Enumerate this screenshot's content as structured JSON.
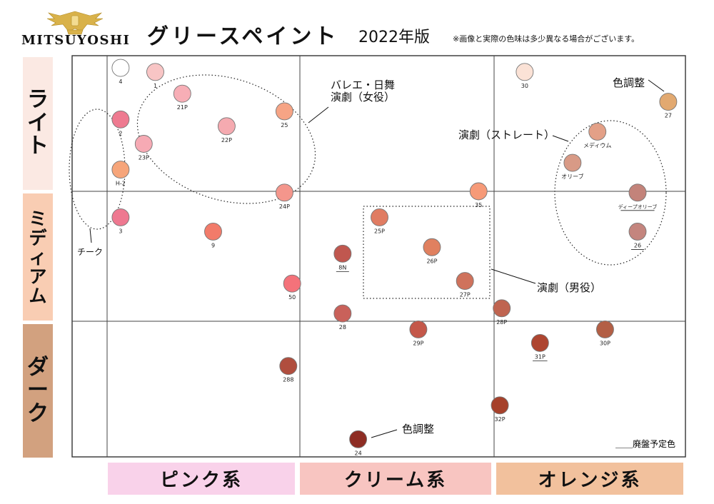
{
  "brand": {
    "name": "MITSUYOSHI"
  },
  "header": {
    "title": "グリースペイント",
    "edition": "2022年版",
    "note": "※画像と実際の色味は多少異なる場合がございます。"
  },
  "rows": [
    {
      "label": "ライト",
      "color": "#fbe9e3"
    },
    {
      "label": "ミディアム",
      "color": "#f9cdb3"
    },
    {
      "label": "ダーク",
      "color": "#d2a17f"
    }
  ],
  "columns": [
    {
      "label": "ピンク系",
      "color": "#f9d2ea"
    },
    {
      "label": "クリーム系",
      "color": "#f8c5c1"
    },
    {
      "label": "オレンジ系",
      "color": "#f2c19d"
    }
  ],
  "chart_data": {
    "type": "scatter",
    "legend": {
      "discontinued_label": "＿＿廃盤予定色"
    },
    "points": [
      {
        "label": "4",
        "x": 0.07,
        "y": 0.09,
        "color": "#ffffff",
        "discontinued": false
      },
      {
        "label": "2",
        "x": 0.07,
        "y": 0.47,
        "color": "#ee7a90",
        "discontinued": false
      },
      {
        "label": "H-2",
        "x": 0.07,
        "y": 0.84,
        "color": "#f6a57a",
        "discontinued": false
      },
      {
        "label": "3",
        "x": 0.07,
        "y": 1.2,
        "color": "#ee7890",
        "discontinued": false
      },
      {
        "label": "1",
        "x": 0.25,
        "y": 0.12,
        "color": "#f8c5c5",
        "discontinued": false
      },
      {
        "label": "21P",
        "x": 0.39,
        "y": 0.28,
        "color": "#f7aeb6",
        "discontinued": false
      },
      {
        "label": "22P",
        "x": 0.62,
        "y": 0.52,
        "color": "#f5aab0",
        "discontinued": false
      },
      {
        "label": "23P",
        "x": 0.19,
        "y": 0.65,
        "color": "#f6aab4",
        "discontinued": false
      },
      {
        "label": "25",
        "x": 0.92,
        "y": 0.41,
        "color": "#f6a485",
        "discontinued": false
      },
      {
        "label": "24P",
        "x": 0.92,
        "y": 1.01,
        "color": "#f4968c",
        "discontinued": false
      },
      {
        "label": "9",
        "x": 0.55,
        "y": 1.31,
        "color": "#f27b6a",
        "discontinued": false
      },
      {
        "label": "50",
        "x": 0.96,
        "y": 1.71,
        "color": "#f4727a",
        "discontinued": false
      },
      {
        "label": "288",
        "x": 0.94,
        "y": 2.33,
        "color": "#b04e3e",
        "discontinued": false
      },
      {
        "label": "8N",
        "x": 1.22,
        "y": 1.48,
        "color": "#c0574f",
        "discontinued": true
      },
      {
        "label": "28",
        "x": 1.22,
        "y": 1.94,
        "color": "#c9615a",
        "discontinued": false
      },
      {
        "label": "25P",
        "x": 1.41,
        "y": 1.2,
        "color": "#e07c62",
        "discontinued": false
      },
      {
        "label": "26P",
        "x": 1.68,
        "y": 1.43,
        "color": "#e0805f",
        "discontinued": false
      },
      {
        "label": "27P",
        "x": 1.85,
        "y": 1.69,
        "color": "#cf725c",
        "discontinued": false
      },
      {
        "label": "29P",
        "x": 1.61,
        "y": 2.06,
        "color": "#c4584a",
        "discontinued": false
      },
      {
        "label": "24",
        "x": 1.3,
        "y": 2.87,
        "color": "#8e2d24",
        "discontinued": false
      },
      {
        "label": "35",
        "x": 1.92,
        "y": 1.0,
        "color": "#f69a78",
        "discontinued": false
      },
      {
        "label": "30",
        "x": 2.16,
        "y": 0.12,
        "color": "#fbe2d6",
        "discontinued": false
      },
      {
        "label": "27",
        "x": 2.91,
        "y": 0.34,
        "color": "#e2a970",
        "discontinued": false
      },
      {
        "label": "メディウム",
        "x": 2.54,
        "y": 0.56,
        "color": "#e3a087",
        "discontinued": false
      },
      {
        "label": "オリーブ",
        "x": 2.41,
        "y": 0.79,
        "color": "#d89a86",
        "discontinued": false
      },
      {
        "label": "ディープオリーブ",
        "x": 2.75,
        "y": 1.01,
        "color": "#c3837a",
        "discontinued": true
      },
      {
        "label": "26",
        "x": 2.75,
        "y": 1.31,
        "color": "#c4857e",
        "discontinued": true
      },
      {
        "label": "28P",
        "x": 2.04,
        "y": 1.9,
        "color": "#bf6450",
        "discontinued": false
      },
      {
        "label": "31P",
        "x": 2.24,
        "y": 2.16,
        "color": "#ae4530",
        "discontinued": true
      },
      {
        "label": "30P",
        "x": 2.58,
        "y": 2.06,
        "color": "#b35f45",
        "discontinued": false
      },
      {
        "label": "32P",
        "x": 2.03,
        "y": 2.62,
        "color": "#a6412b",
        "discontinued": false
      }
    ],
    "annotations": [
      {
        "text": "チーク"
      },
      {
        "text": "バレエ・日舞"
      },
      {
        "text": "演劇（女役）"
      },
      {
        "text": "色調整"
      },
      {
        "text": "演劇（ストレート）"
      },
      {
        "text": "演劇（男役）"
      },
      {
        "text": "色調整"
      }
    ]
  }
}
